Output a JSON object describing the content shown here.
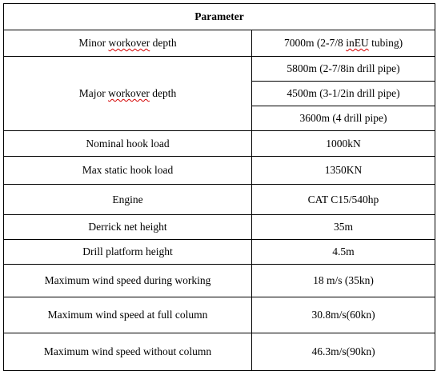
{
  "table": {
    "header": "Parameter",
    "minor_workover": {
      "label_prefix": "Minor ",
      "label_flagged": "workover",
      "label_suffix": " depth",
      "value_prefix": "7000m (2-7/8 ",
      "value_flagged": "inEU",
      "value_suffix": " tubing)"
    },
    "major_workover": {
      "label_prefix": "Major ",
      "label_flagged": "workover",
      "label_suffix": " depth",
      "values": [
        "5800m (2-7/8in drill pipe)",
        "4500m (3-1/2in drill pipe)",
        "3600m (4 drill pipe)"
      ]
    },
    "rows": [
      {
        "label": "Nominal hook load",
        "value": "1000kN"
      },
      {
        "label": "Max static hook load",
        "value": "1350KN"
      },
      {
        "label": "Engine",
        "value": "CAT C15/540hp"
      },
      {
        "label": "Derrick net height",
        "value": "35m"
      },
      {
        "label": "Drill platform height",
        "value": "4.5m"
      },
      {
        "label": "Maximum wind speed during working",
        "value": "18 m/s (35kn)"
      },
      {
        "label": "Maximum wind speed at full column",
        "value": "30.8m/s(60kn)"
      },
      {
        "label": "Maximum wind speed without column",
        "value": "46.3m/s(90kn)"
      }
    ]
  }
}
